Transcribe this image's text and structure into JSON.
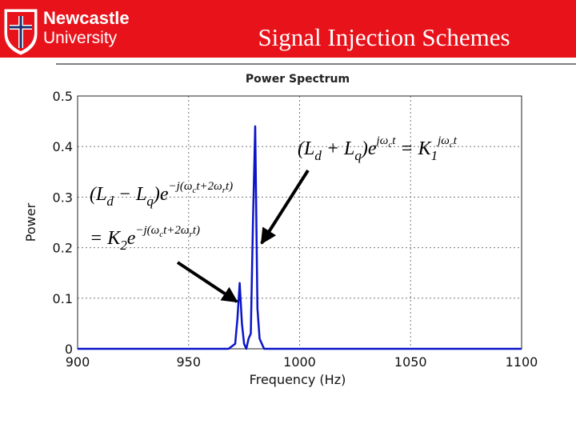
{
  "header": {
    "logo_line1": "Newcastle",
    "logo_line2": "University",
    "title": "Signal Injection Schemes"
  },
  "chart_data": {
    "type": "line",
    "title": "Power Spectrum",
    "xlabel": "Frequency (Hz)",
    "ylabel": "Power",
    "x": [
      900,
      968,
      971,
      972,
      973,
      974,
      975,
      976,
      977,
      978,
      979,
      980,
      981,
      982,
      983,
      984,
      1100
    ],
    "series": [
      {
        "color": "#0a14c8",
        "values": [
          0,
          0,
          0.01,
          0.06,
          0.13,
          0.05,
          0.01,
          0,
          0.02,
          0.03,
          0.25,
          0.44,
          0.08,
          0.02,
          0.01,
          0,
          0
        ]
      }
    ],
    "xlim": [
      900,
      1100
    ],
    "xticks": [
      900,
      950,
      1000,
      1050,
      1100
    ],
    "ylim": [
      0,
      0.5
    ],
    "yticks": [
      0,
      0.1,
      0.2,
      0.3,
      0.4,
      0.5
    ],
    "grid": true
  },
  "annotations": [
    {
      "lines": [
        [
          {
            "t": "(L"
          },
          {
            "t": "d",
            "sub": true
          },
          {
            "t": " + L"
          },
          {
            "t": "q",
            "sub": true
          },
          {
            "t": ")e"
          },
          {
            "t": "jω",
            "sup": true
          },
          {
            "t": "c",
            "supsub": true
          },
          {
            "t": "t",
            "sup": true
          },
          {
            "t": " = K"
          },
          {
            "t": "1",
            "sub": true
          },
          {
            "t": "jω",
            "sup": true
          },
          {
            "t": "c",
            "supsub": true
          },
          {
            "t": "t",
            "sup": true
          }
        ]
      ]
    },
    {
      "lines": [
        [
          {
            "t": "(L"
          },
          {
            "t": "d",
            "sub": true
          },
          {
            "t": " − L"
          },
          {
            "t": "q",
            "sub": true
          },
          {
            "t": ")e"
          },
          {
            "t": "−j(ω",
            "sup": true
          },
          {
            "t": "c",
            "supsub": true
          },
          {
            "t": "t+2ω",
            "sup": true
          },
          {
            "t": "r",
            "supsub": true
          },
          {
            "t": "t)",
            "sup": true
          }
        ],
        [
          {
            "t": "= K"
          },
          {
            "t": "2",
            "sub": true
          },
          {
            "t": "e"
          },
          {
            "t": "−j(ω",
            "sup": true
          },
          {
            "t": "c",
            "supsub": true
          },
          {
            "t": "t+2ω",
            "sup": true
          },
          {
            "t": "r",
            "supsub": true
          },
          {
            "t": "t)",
            "sup": true
          }
        ]
      ]
    }
  ]
}
